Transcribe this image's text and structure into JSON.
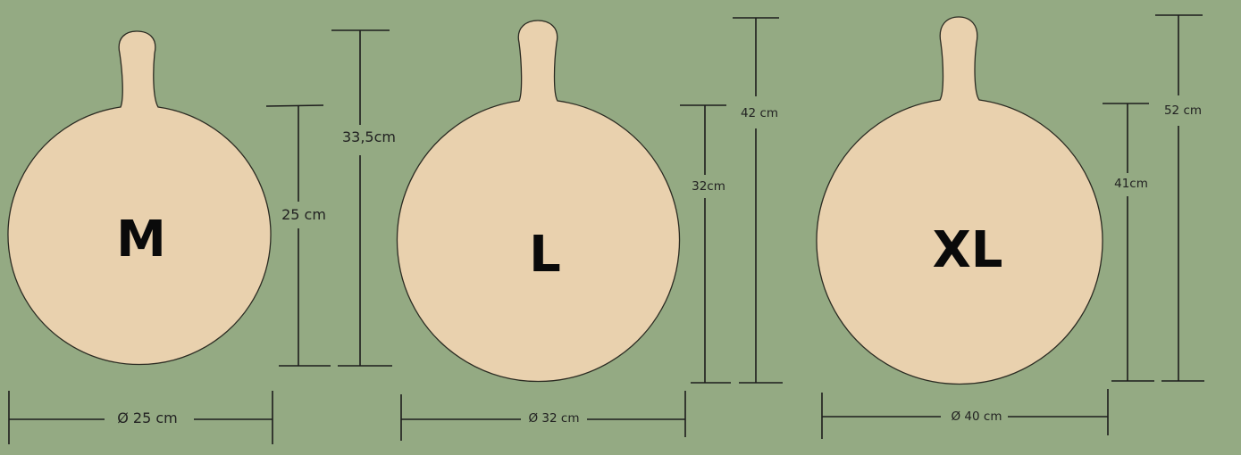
{
  "colors": {
    "background": "#94aa83",
    "board_fill": "#e9d1ae",
    "board_outline": "#2b2b22",
    "line": "#1c1c1c",
    "text": "#222222"
  },
  "boards": [
    {
      "size_label": "M",
      "diameter_label": "Ø 25 cm",
      "board_height_label": "25 cm",
      "total_height_label": "33,5cm"
    },
    {
      "size_label": "L",
      "diameter_label": "Ø 32 cm",
      "board_height_label": "32cm",
      "total_height_label": "42 cm"
    },
    {
      "size_label": "XL",
      "diameter_label": "Ø 40 cm",
      "board_height_label": "41cm",
      "total_height_label": "52 cm"
    }
  ]
}
